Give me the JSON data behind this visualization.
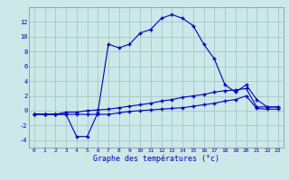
{
  "xlabel": "Graphe des températures (°c)",
  "background_color": "#cce8e8",
  "grid_color": "#aacccc",
  "line_color": "#0000bb",
  "xlim": [
    -0.5,
    23.5
  ],
  "ylim": [
    -5,
    14
  ],
  "xticks": [
    0,
    1,
    2,
    3,
    4,
    5,
    6,
    7,
    8,
    9,
    10,
    11,
    12,
    13,
    14,
    15,
    16,
    17,
    18,
    19,
    20,
    21,
    22,
    23
  ],
  "yticks": [
    -4,
    -2,
    0,
    2,
    4,
    6,
    8,
    10,
    12
  ],
  "curve1_x": [
    0,
    1,
    2,
    3,
    4,
    5,
    6,
    7,
    8,
    9,
    10,
    11,
    12,
    13,
    14,
    15,
    16,
    17,
    18,
    19,
    20,
    21,
    22,
    23
  ],
  "curve1_y": [
    -0.5,
    -0.5,
    -0.5,
    -0.5,
    -3.5,
    -3.5,
    -0.3,
    9.0,
    8.5,
    9.0,
    10.5,
    11.0,
    12.5,
    13.0,
    12.5,
    11.5,
    9.0,
    7.0,
    3.5,
    2.5,
    3.5,
    1.5,
    0.5,
    0.5
  ],
  "curve2_x": [
    0,
    1,
    2,
    3,
    4,
    5,
    6,
    7,
    8,
    9,
    10,
    11,
    12,
    13,
    14,
    15,
    16,
    17,
    18,
    19,
    20,
    21,
    22,
    23
  ],
  "curve2_y": [
    -0.5,
    -0.5,
    -0.5,
    -0.2,
    -0.2,
    0.0,
    0.1,
    0.2,
    0.4,
    0.6,
    0.8,
    1.0,
    1.3,
    1.5,
    1.8,
    2.0,
    2.2,
    2.5,
    2.7,
    2.8,
    3.0,
    0.5,
    0.5,
    0.5
  ],
  "curve3_x": [
    0,
    1,
    2,
    3,
    4,
    5,
    6,
    7,
    8,
    9,
    10,
    11,
    12,
    13,
    14,
    15,
    16,
    17,
    18,
    19,
    20,
    21,
    22,
    23
  ],
  "curve3_y": [
    -0.5,
    -0.5,
    -0.5,
    -0.5,
    -0.5,
    -0.5,
    -0.5,
    -0.5,
    -0.3,
    -0.1,
    0.0,
    0.1,
    0.2,
    0.3,
    0.4,
    0.6,
    0.8,
    1.0,
    1.3,
    1.5,
    2.0,
    0.3,
    0.2,
    0.2
  ]
}
